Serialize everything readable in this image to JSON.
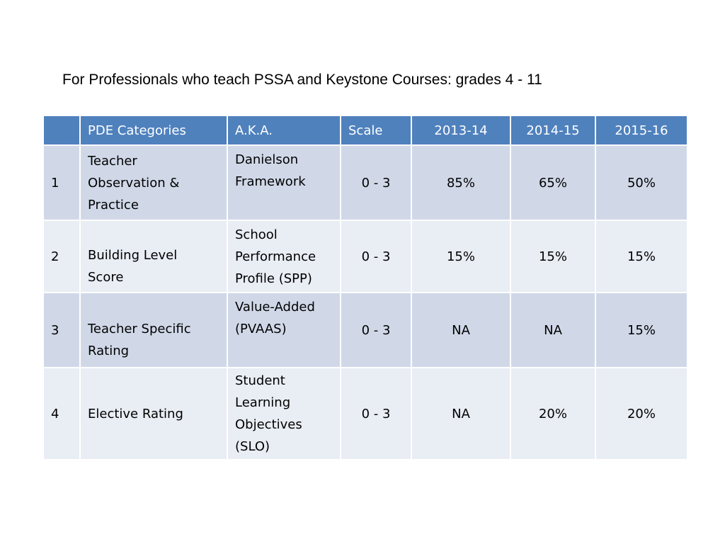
{
  "title": "For Professionals who teach PSSA and Keystone Courses: grades 4 - 11",
  "colors": {
    "header_bg": "#4f81bd",
    "row_odd_bg": "#d0d8e8",
    "row_even_bg": "#e9edf4",
    "header_text": "#ffffff"
  },
  "table": {
    "headers": [
      "",
      "PDE Categories",
      "A.K.A.",
      "Scale",
      "2013-14",
      "2014-15",
      "2015-16"
    ],
    "rows": [
      {
        "num": "1",
        "category": "Teacher\nObservation &\nPractice",
        "aka": "Danielson\nFramework",
        "scale": "0 - 3",
        "y2013": "85%",
        "y2014": "65%",
        "y2015": "50%"
      },
      {
        "num": "2",
        "category": "Building Level\nScore",
        "aka": "School\nPerformance\nProfile (SPP)",
        "scale": "0 - 3",
        "y2013": "15%",
        "y2014": "15%",
        "y2015": "15%"
      },
      {
        "num": "3",
        "category": "Teacher Specific\nRating",
        "aka": "Value-Added\n(PVAAS)",
        "scale": "0 - 3",
        "y2013": "NA",
        "y2014": "NA",
        "y2015": "15%"
      },
      {
        "num": "4",
        "category": "Elective Rating",
        "aka": "Student\nLearning\nObjectives\n(SLO)",
        "scale": "0 - 3",
        "y2013": "NA",
        "y2014": "20%",
        "y2015": "20%"
      }
    ]
  }
}
